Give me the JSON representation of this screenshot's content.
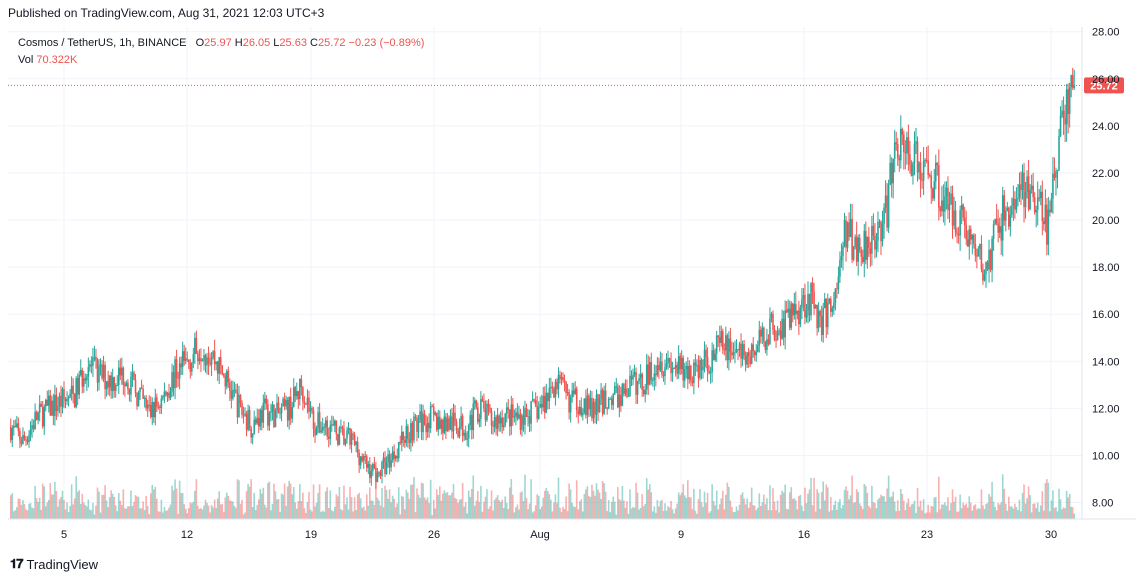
{
  "published": "Published on TradingView.com, Aug 31, 2021 12:03 UTC+3",
  "branding": "TradingView",
  "legend": {
    "symbol": "Cosmos / TetherUS, 1h, BINANCE",
    "o_label": "O",
    "o_val": "25.97",
    "h_label": "H",
    "h_val": "26.05",
    "l_label": "L",
    "l_val": "25.63",
    "c_label": "C",
    "c_val": "25.72",
    "change": "−0.23 (−0.89%)",
    "vol_label": "Vol",
    "vol_val": "70.322K"
  },
  "colors": {
    "up": "#26a69a",
    "down": "#ef5350",
    "grid": "#f0f3fa",
    "axis_text": "#131722"
  },
  "chart_data": {
    "type": "candlestick",
    "ylim": [
      7.3,
      28.2
    ],
    "y_ticks": [
      "28.00",
      "26.00",
      "24.00",
      "22.00",
      "20.00",
      "18.00",
      "16.00",
      "14.00",
      "12.00",
      "10.00",
      "8.00"
    ],
    "x_ticks": [
      "5",
      "12",
      "19",
      "26",
      "Aug",
      "9",
      "16",
      "23",
      "30"
    ],
    "last_price_label": "25.72",
    "last_price": 25.72,
    "path": [
      [
        0,
        11.2
      ],
      [
        1,
        10.6
      ],
      [
        2,
        11.6
      ],
      [
        3,
        12.0
      ],
      [
        4,
        12.3
      ],
      [
        5,
        12.5
      ],
      [
        6,
        13.9
      ],
      [
        7,
        13.4
      ],
      [
        8,
        13.2
      ],
      [
        9,
        13.5
      ],
      [
        10,
        12.6
      ],
      [
        11,
        11.8
      ],
      [
        12,
        12.4
      ],
      [
        13,
        13.5
      ],
      [
        14,
        14.0
      ],
      [
        15,
        14.7
      ],
      [
        16,
        14.2
      ],
      [
        17,
        13.2
      ],
      [
        18,
        12.1
      ],
      [
        19,
        11.3
      ],
      [
        20,
        11.9
      ],
      [
        21,
        11.7
      ],
      [
        22,
        12.0
      ],
      [
        23,
        13.0
      ],
      [
        24,
        11.3
      ],
      [
        25,
        11.3
      ],
      [
        26,
        10.8
      ],
      [
        27,
        10.6
      ],
      [
        28,
        9.6
      ],
      [
        29,
        9.2
      ],
      [
        30,
        9.9
      ],
      [
        31,
        10.8
      ],
      [
        32,
        11.3
      ],
      [
        33,
        11.6
      ],
      [
        34,
        11.4
      ],
      [
        35,
        11.3
      ],
      [
        36,
        11.2
      ],
      [
        37,
        12.1
      ],
      [
        38,
        11.4
      ],
      [
        39,
        11.7
      ],
      [
        40,
        11.6
      ],
      [
        41,
        11.8
      ],
      [
        42,
        12.1
      ],
      [
        43,
        13.2
      ],
      [
        44,
        12.4
      ],
      [
        45,
        12.3
      ],
      [
        46,
        11.9
      ],
      [
        47,
        12.4
      ],
      [
        48,
        12.5
      ],
      [
        49,
        13.0
      ],
      [
        50,
        13.1
      ],
      [
        51,
        14.1
      ],
      [
        52,
        14.0
      ],
      [
        53,
        13.5
      ],
      [
        54,
        13.6
      ],
      [
        55,
        14.0
      ],
      [
        56,
        14.6
      ],
      [
        57,
        14.6
      ],
      [
        58,
        14.1
      ],
      [
        59,
        14.6
      ],
      [
        60,
        15.5
      ],
      [
        61,
        15.6
      ],
      [
        62,
        16.2
      ],
      [
        63,
        16.8
      ],
      [
        64,
        15.7
      ],
      [
        65,
        16.6
      ],
      [
        66,
        19.6
      ],
      [
        67,
        18.7
      ],
      [
        68,
        19.5
      ],
      [
        69,
        19.8
      ],
      [
        70,
        23.5
      ],
      [
        71,
        22.8
      ],
      [
        72,
        22.1
      ],
      [
        73,
        21.8
      ],
      [
        74,
        20.5
      ],
      [
        75,
        20.2
      ],
      [
        76,
        18.9
      ],
      [
        77,
        17.7
      ],
      [
        78,
        19.9
      ],
      [
        79,
        20.5
      ],
      [
        80,
        21.4
      ],
      [
        81,
        20.6
      ],
      [
        82,
        19.7
      ],
      [
        83,
        24.4
      ],
      [
        84,
        25.7
      ]
    ]
  }
}
